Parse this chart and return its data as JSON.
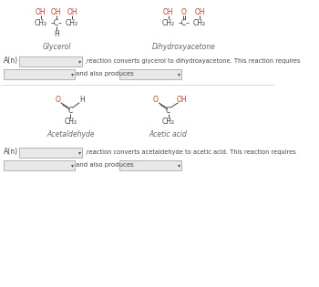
{
  "bg_color": "#ffffff",
  "text_color": "#333333",
  "dark_color": "#444444",
  "red_color": "#c0392b",
  "gray_border": "#bbbbbb",
  "drop_bg": "#e8e8e8",
  "label_italic_color": "#666666",
  "glycerol_label": "Glycerol",
  "dihydroxy_label": "Dihydroxyacetone",
  "acetaldehyde_label": "Acetaldehyde",
  "acetic_label": "Acetic acid",
  "line1_text": "reaction converts glycerol to dihydroxyacetone. This reaction requires",
  "line2_text": "and also produces",
  "line3_text": "reaction converts acetaldehyde to acetic acid. This reaction requires",
  "line4_text": "and also produces",
  "an_text": "A(n)",
  "dot_char": "▾"
}
